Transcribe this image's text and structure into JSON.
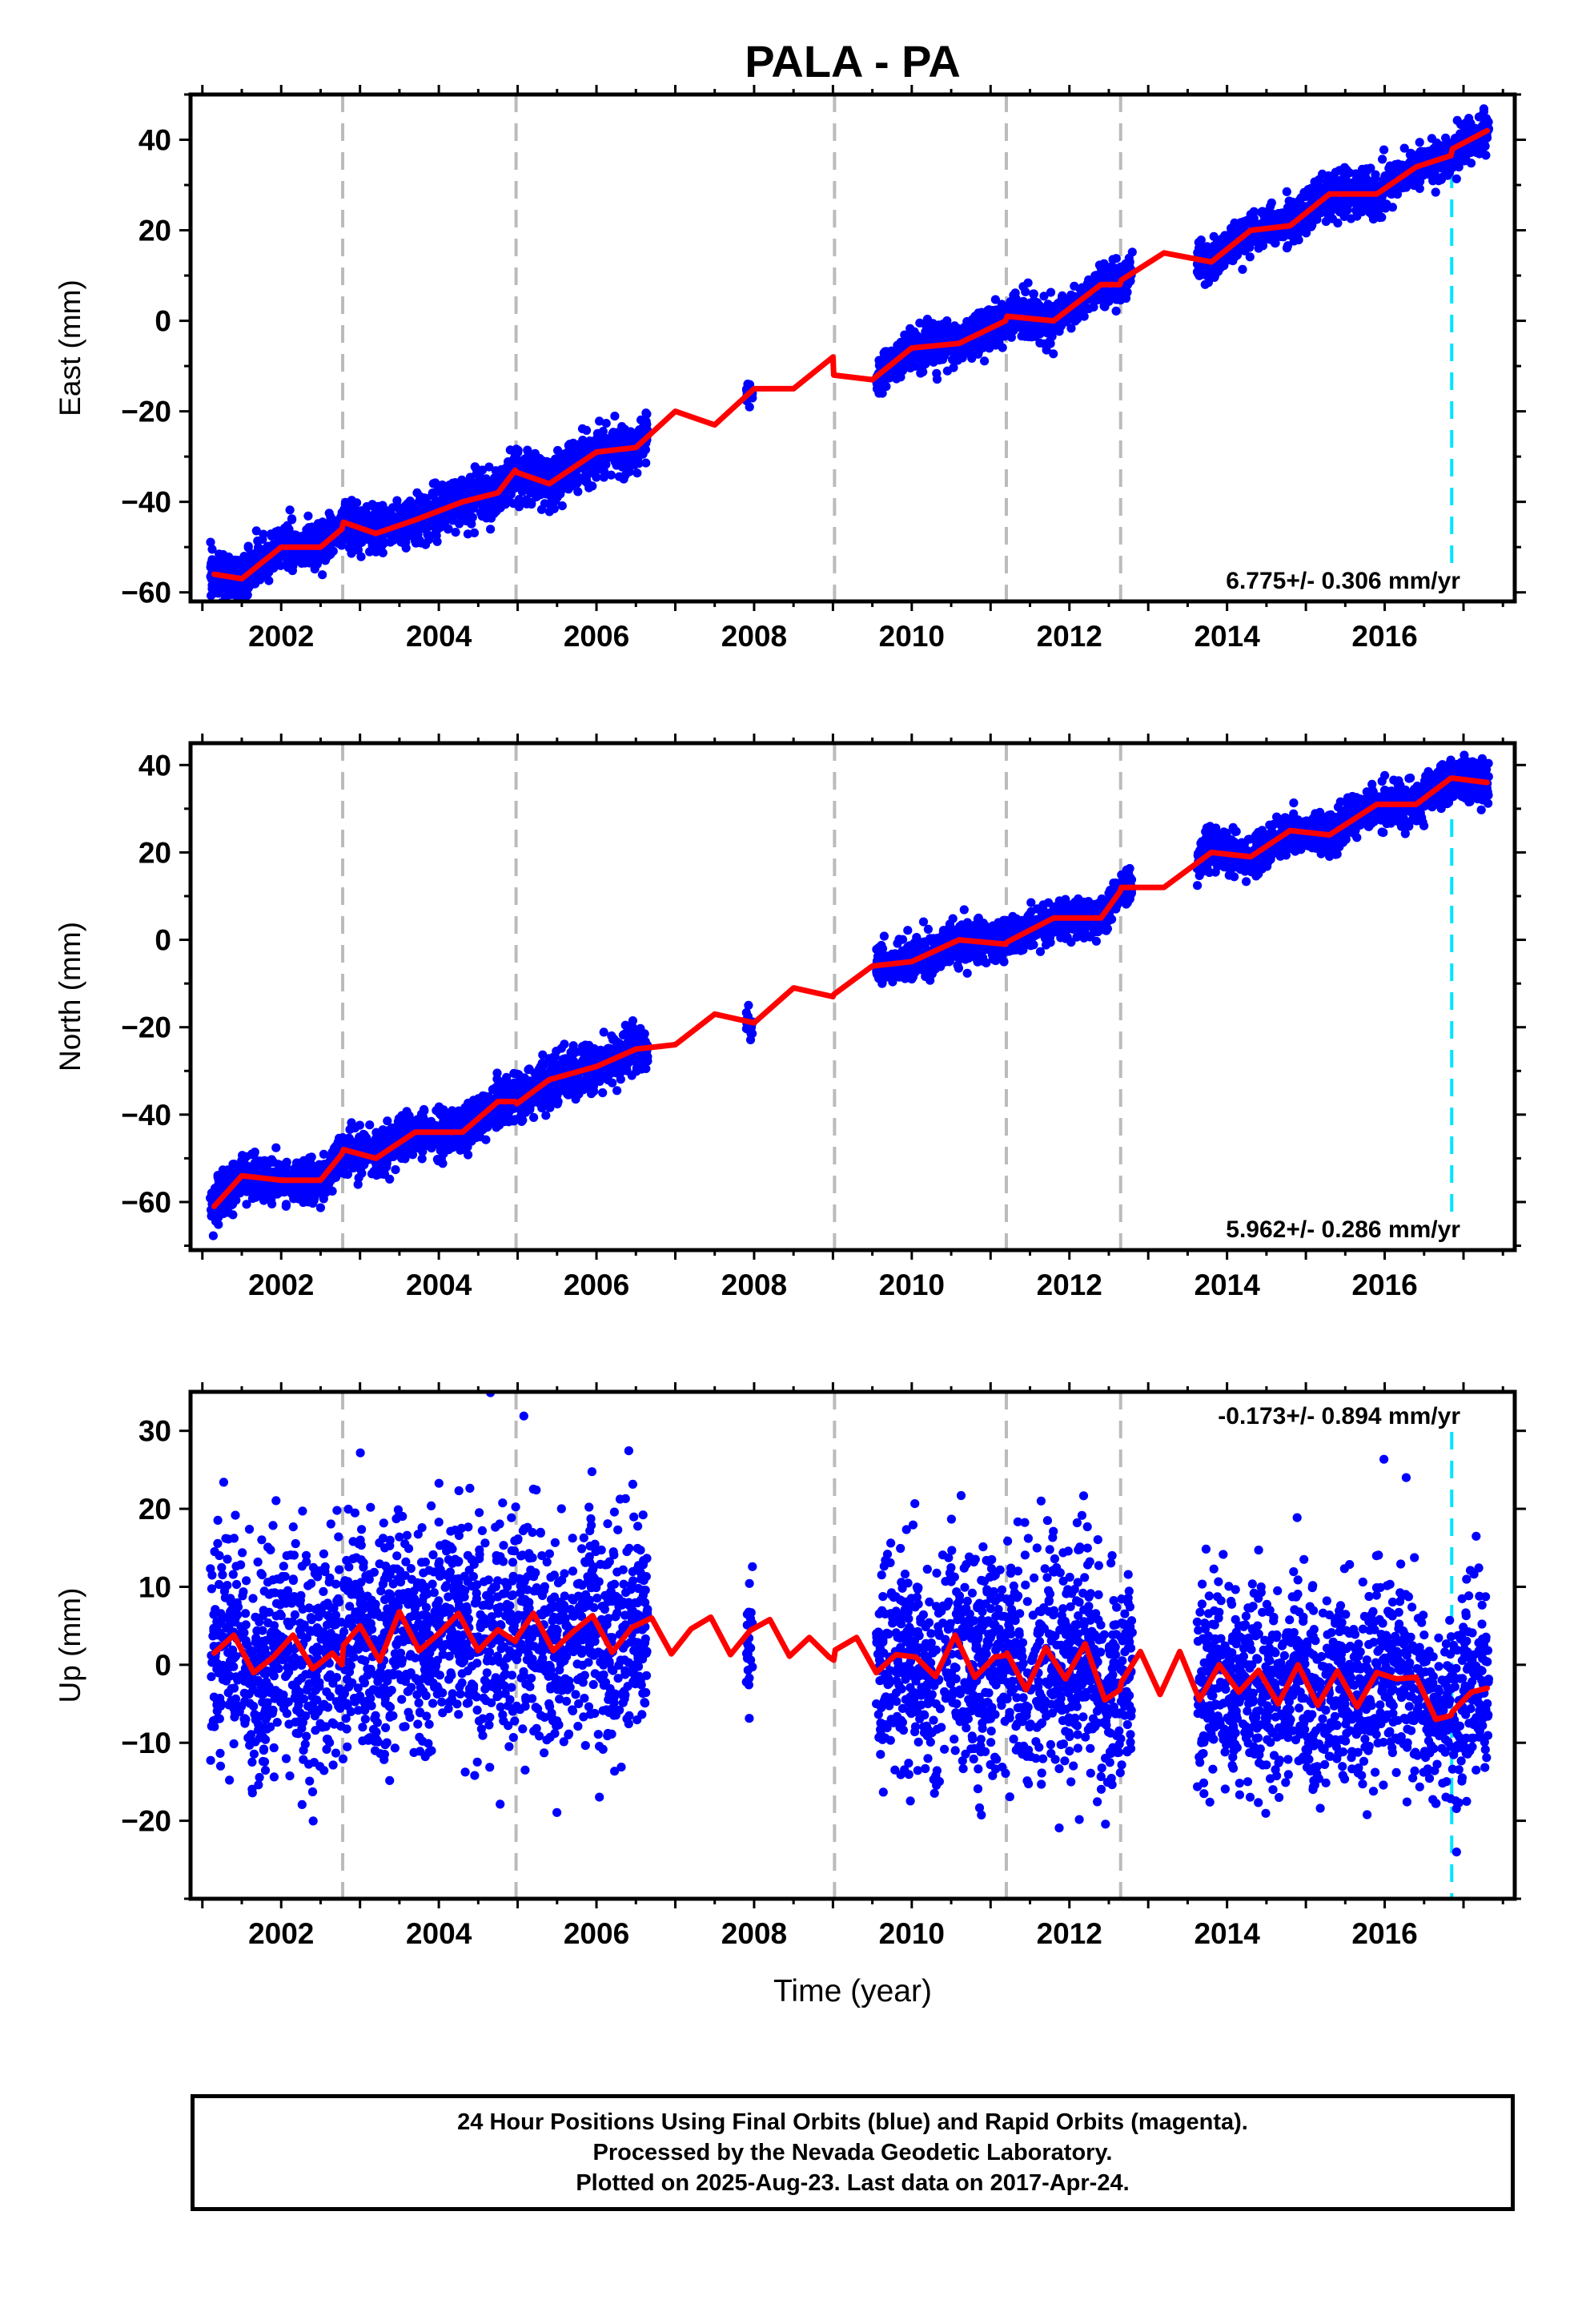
{
  "title": "PALA - PA",
  "colors": {
    "data": "#0000ff",
    "model": "#ff0000",
    "gray_dashed": "#bbbbbb",
    "cyan_dashed": "#00e5ff",
    "frame": "#000000"
  },
  "footer": {
    "lines": [
      "24 Hour Positions Using Final Orbits (blue) and Rapid Orbits (magenta).",
      "Processed by the Nevada Geodetic Laboratory.",
      "Plotted on 2025-Aug-23. Last data on 2017-Apr-24."
    ]
  },
  "chart_data": [
    {
      "type": "scatter",
      "component": "east",
      "ylabel": "East (mm)",
      "xlabel": "",
      "xlim": [
        2000.85,
        2017.65
      ],
      "ylim": [
        -62,
        50
      ],
      "xticks": [
        2002,
        2004,
        2006,
        2008,
        2010,
        2012,
        2014,
        2016
      ],
      "yticks": [
        -60,
        -40,
        -20,
        0,
        20,
        40
      ],
      "rate_label": "6.775+/- 0.306 mm/yr",
      "rate_position": "bottom-right",
      "gray_events": [
        2002.78,
        2004.98,
        2009.02,
        2011.2,
        2012.65
      ],
      "cyan_events": [
        2016.85
      ],
      "model": {
        "x": [
          2001.15,
          2001.5,
          2002.0,
          2002.5,
          2002.77,
          2002.79,
          2003.2,
          2003.7,
          2004.3,
          2004.75,
          2004.97,
          2004.99,
          2005.4,
          2006.0,
          2006.5,
          2007.0,
          2007.5,
          2008.0,
          2008.5,
          2009.0,
          2009.01,
          2009.5,
          2010.0,
          2010.6,
          2011.19,
          2011.21,
          2011.8,
          2012.4,
          2012.64,
          2012.66,
          2013.2,
          2013.8,
          2014.3,
          2014.8,
          2015.3,
          2015.9,
          2016.4,
          2016.84,
          2016.86,
          2017.3
        ],
        "y": [
          -56,
          -57,
          -50,
          -50,
          -46,
          -44.5,
          -47,
          -44,
          -40,
          -38,
          -33,
          -33.5,
          -36,
          -29,
          -28,
          -20,
          -23,
          -15,
          -15,
          -8,
          -12,
          -13,
          -6,
          -5,
          0,
          1,
          0,
          8,
          8,
          9,
          15,
          13,
          20,
          21,
          28,
          28,
          34,
          36.5,
          38,
          42
        ]
      },
      "data_segments": [
        {
          "x0": 2001.1,
          "x1": 2006.65,
          "spread": 2.6
        },
        {
          "x0": 2007.9,
          "x1": 2007.98,
          "spread": 1.5
        },
        {
          "x0": 2009.55,
          "x1": 2012.8,
          "spread": 2.2
        },
        {
          "x0": 2013.62,
          "x1": 2017.32,
          "spread": 2.3
        }
      ]
    },
    {
      "type": "scatter",
      "component": "north",
      "ylabel": "North (mm)",
      "xlabel": "",
      "xlim": [
        2000.85,
        2017.65
      ],
      "ylim": [
        -71,
        45
      ],
      "xticks": [
        2002,
        2004,
        2006,
        2008,
        2010,
        2012,
        2014,
        2016
      ],
      "yticks": [
        -60,
        -40,
        -20,
        0,
        20,
        40
      ],
      "rate_label": "5.962+/- 0.286 mm/yr",
      "rate_position": "bottom-right",
      "gray_events": [
        2002.78,
        2004.98,
        2009.02,
        2011.2,
        2012.65
      ],
      "cyan_events": [
        2016.85
      ],
      "model": {
        "x": [
          2001.15,
          2001.5,
          2002.0,
          2002.5,
          2002.77,
          2002.79,
          2003.2,
          2003.7,
          2004.3,
          2004.75,
          2004.97,
          2004.99,
          2005.4,
          2006.0,
          2006.5,
          2007.0,
          2007.5,
          2008.0,
          2008.5,
          2009.0,
          2009.01,
          2009.5,
          2010.0,
          2010.6,
          2011.19,
          2011.21,
          2011.8,
          2012.4,
          2012.64,
          2012.66,
          2013.2,
          2013.8,
          2014.3,
          2014.8,
          2015.3,
          2015.9,
          2016.4,
          2016.84,
          2016.86,
          2017.3
        ],
        "y": [
          -61,
          -54,
          -55,
          -55,
          -49,
          -48,
          -50,
          -44,
          -44,
          -37,
          -37,
          -37.5,
          -32,
          -29,
          -25,
          -24,
          -17,
          -19,
          -11,
          -13,
          -12.5,
          -6,
          -5,
          0,
          -1,
          -0.5,
          5,
          5,
          11,
          12,
          12,
          20,
          19,
          25,
          24,
          31,
          31,
          37,
          37,
          36
        ]
      },
      "data_segments": [
        {
          "x0": 2001.1,
          "x1": 2006.65,
          "spread": 2.6
        },
        {
          "x0": 2007.9,
          "x1": 2007.98,
          "spread": 1.5
        },
        {
          "x0": 2009.55,
          "x1": 2012.8,
          "spread": 2.2
        },
        {
          "x0": 2013.62,
          "x1": 2017.32,
          "spread": 2.3
        }
      ]
    },
    {
      "type": "scatter",
      "component": "up",
      "ylabel": "Up (mm)",
      "xlabel": "Time (year)",
      "xlim": [
        2000.85,
        2017.65
      ],
      "ylim": [
        -30,
        35
      ],
      "xticks": [
        2002,
        2004,
        2006,
        2008,
        2010,
        2012,
        2014,
        2016
      ],
      "yticks": [
        -20,
        -10,
        0,
        10,
        20,
        30
      ],
      "rate_label": "-0.173+/- 0.894 mm/yr",
      "rate_position": "top-right",
      "gray_events": [
        2002.78,
        2004.98,
        2009.02,
        2011.2,
        2012.65
      ],
      "cyan_events": [
        2016.85
      ],
      "model": {
        "x": [
          2001.15,
          2001.4,
          2001.65,
          2001.9,
          2002.15,
          2002.4,
          2002.65,
          2002.77,
          2002.79,
          2003.0,
          2003.25,
          2003.5,
          2003.75,
          2004.0,
          2004.25,
          2004.5,
          2004.75,
          2004.97,
          2004.99,
          2005.2,
          2005.45,
          2005.7,
          2005.95,
          2006.2,
          2006.45,
          2006.7,
          2006.95,
          2007.2,
          2007.45,
          2007.7,
          2007.95,
          2008.2,
          2008.45,
          2008.7,
          2008.95,
          2009.01,
          2009.03,
          2009.3,
          2009.55,
          2009.8,
          2010.05,
          2010.3,
          2010.55,
          2010.8,
          2011.05,
          2011.19,
          2011.21,
          2011.45,
          2011.7,
          2011.95,
          2012.2,
          2012.45,
          2012.64,
          2012.66,
          2012.9,
          2013.15,
          2013.4,
          2013.65,
          2013.9,
          2014.15,
          2014.4,
          2014.65,
          2014.9,
          2015.15,
          2015.4,
          2015.65,
          2015.9,
          2016.15,
          2016.4,
          2016.65,
          2016.84,
          2016.86,
          2017.1,
          2017.3
        ],
        "y": [
          1.5,
          3.8,
          -1,
          1,
          3.8,
          -0.5,
          1.5,
          0,
          2.5,
          5,
          0.5,
          6.8,
          1.8,
          4,
          6.6,
          1.8,
          4.5,
          3,
          3.5,
          6.6,
          1.8,
          4.2,
          6.3,
          1.6,
          4.8,
          6,
          1.4,
          4.6,
          6.1,
          1.3,
          4.4,
          5.8,
          1.1,
          3.5,
          1,
          0.6,
          1.9,
          3.5,
          -1,
          1.3,
          1,
          -1.5,
          3.8,
          -1.6,
          1,
          1.2,
          1.5,
          -3.2,
          2.2,
          -1.8,
          2.7,
          -4.5,
          -3.2,
          -2.2,
          1.7,
          -3.8,
          1.7,
          -4.5,
          0,
          -3.5,
          -0.7,
          -5,
          0,
          -5.2,
          -0.8,
          -5.4,
          -1,
          -1.8,
          -1.6,
          -7,
          -6.5,
          -6,
          -3.5,
          -3
        ]
      },
      "data_segments": [
        {
          "x0": 2001.1,
          "x1": 2006.65,
          "spread": 7
        },
        {
          "x0": 2007.9,
          "x1": 2007.98,
          "spread": 4
        },
        {
          "x0": 2009.55,
          "x1": 2012.8,
          "spread": 7
        },
        {
          "x0": 2013.62,
          "x1": 2017.32,
          "spread": 6
        }
      ]
    }
  ]
}
